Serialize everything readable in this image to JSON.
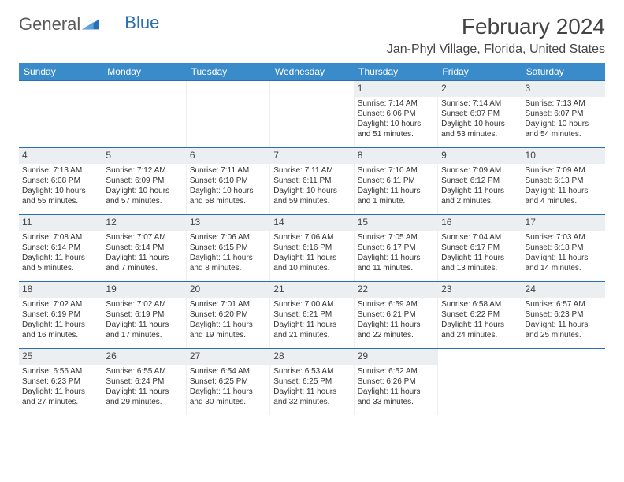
{
  "brand": {
    "part1": "General",
    "part2": "Blue"
  },
  "title": "February 2024",
  "location": "Jan-Phyl Village, Florida, United States",
  "colors": {
    "header_bg": "#3a8bc9",
    "header_text": "#ffffff",
    "border": "#2a6fb5",
    "daynum_bg": "#eceff1",
    "body_text": "#333333",
    "brand_gray": "#5a5a5a",
    "brand_blue": "#2a6fb5"
  },
  "weekdays": [
    "Sunday",
    "Monday",
    "Tuesday",
    "Wednesday",
    "Thursday",
    "Friday",
    "Saturday"
  ],
  "weeks": [
    [
      {
        "n": "",
        "lines": [
          "",
          "",
          "",
          ""
        ]
      },
      {
        "n": "",
        "lines": [
          "",
          "",
          "",
          ""
        ]
      },
      {
        "n": "",
        "lines": [
          "",
          "",
          "",
          ""
        ]
      },
      {
        "n": "",
        "lines": [
          "",
          "",
          "",
          ""
        ]
      },
      {
        "n": "1",
        "lines": [
          "Sunrise: 7:14 AM",
          "Sunset: 6:06 PM",
          "Daylight: 10 hours",
          "and 51 minutes."
        ]
      },
      {
        "n": "2",
        "lines": [
          "Sunrise: 7:14 AM",
          "Sunset: 6:07 PM",
          "Daylight: 10 hours",
          "and 53 minutes."
        ]
      },
      {
        "n": "3",
        "lines": [
          "Sunrise: 7:13 AM",
          "Sunset: 6:07 PM",
          "Daylight: 10 hours",
          "and 54 minutes."
        ]
      }
    ],
    [
      {
        "n": "4",
        "lines": [
          "Sunrise: 7:13 AM",
          "Sunset: 6:08 PM",
          "Daylight: 10 hours",
          "and 55 minutes."
        ]
      },
      {
        "n": "5",
        "lines": [
          "Sunrise: 7:12 AM",
          "Sunset: 6:09 PM",
          "Daylight: 10 hours",
          "and 57 minutes."
        ]
      },
      {
        "n": "6",
        "lines": [
          "Sunrise: 7:11 AM",
          "Sunset: 6:10 PM",
          "Daylight: 10 hours",
          "and 58 minutes."
        ]
      },
      {
        "n": "7",
        "lines": [
          "Sunrise: 7:11 AM",
          "Sunset: 6:11 PM",
          "Daylight: 10 hours",
          "and 59 minutes."
        ]
      },
      {
        "n": "8",
        "lines": [
          "Sunrise: 7:10 AM",
          "Sunset: 6:11 PM",
          "Daylight: 11 hours",
          "and 1 minute."
        ]
      },
      {
        "n": "9",
        "lines": [
          "Sunrise: 7:09 AM",
          "Sunset: 6:12 PM",
          "Daylight: 11 hours",
          "and 2 minutes."
        ]
      },
      {
        "n": "10",
        "lines": [
          "Sunrise: 7:09 AM",
          "Sunset: 6:13 PM",
          "Daylight: 11 hours",
          "and 4 minutes."
        ]
      }
    ],
    [
      {
        "n": "11",
        "lines": [
          "Sunrise: 7:08 AM",
          "Sunset: 6:14 PM",
          "Daylight: 11 hours",
          "and 5 minutes."
        ]
      },
      {
        "n": "12",
        "lines": [
          "Sunrise: 7:07 AM",
          "Sunset: 6:14 PM",
          "Daylight: 11 hours",
          "and 7 minutes."
        ]
      },
      {
        "n": "13",
        "lines": [
          "Sunrise: 7:06 AM",
          "Sunset: 6:15 PM",
          "Daylight: 11 hours",
          "and 8 minutes."
        ]
      },
      {
        "n": "14",
        "lines": [
          "Sunrise: 7:06 AM",
          "Sunset: 6:16 PM",
          "Daylight: 11 hours",
          "and 10 minutes."
        ]
      },
      {
        "n": "15",
        "lines": [
          "Sunrise: 7:05 AM",
          "Sunset: 6:17 PM",
          "Daylight: 11 hours",
          "and 11 minutes."
        ]
      },
      {
        "n": "16",
        "lines": [
          "Sunrise: 7:04 AM",
          "Sunset: 6:17 PM",
          "Daylight: 11 hours",
          "and 13 minutes."
        ]
      },
      {
        "n": "17",
        "lines": [
          "Sunrise: 7:03 AM",
          "Sunset: 6:18 PM",
          "Daylight: 11 hours",
          "and 14 minutes."
        ]
      }
    ],
    [
      {
        "n": "18",
        "lines": [
          "Sunrise: 7:02 AM",
          "Sunset: 6:19 PM",
          "Daylight: 11 hours",
          "and 16 minutes."
        ]
      },
      {
        "n": "19",
        "lines": [
          "Sunrise: 7:02 AM",
          "Sunset: 6:19 PM",
          "Daylight: 11 hours",
          "and 17 minutes."
        ]
      },
      {
        "n": "20",
        "lines": [
          "Sunrise: 7:01 AM",
          "Sunset: 6:20 PM",
          "Daylight: 11 hours",
          "and 19 minutes."
        ]
      },
      {
        "n": "21",
        "lines": [
          "Sunrise: 7:00 AM",
          "Sunset: 6:21 PM",
          "Daylight: 11 hours",
          "and 21 minutes."
        ]
      },
      {
        "n": "22",
        "lines": [
          "Sunrise: 6:59 AM",
          "Sunset: 6:21 PM",
          "Daylight: 11 hours",
          "and 22 minutes."
        ]
      },
      {
        "n": "23",
        "lines": [
          "Sunrise: 6:58 AM",
          "Sunset: 6:22 PM",
          "Daylight: 11 hours",
          "and 24 minutes."
        ]
      },
      {
        "n": "24",
        "lines": [
          "Sunrise: 6:57 AM",
          "Sunset: 6:23 PM",
          "Daylight: 11 hours",
          "and 25 minutes."
        ]
      }
    ],
    [
      {
        "n": "25",
        "lines": [
          "Sunrise: 6:56 AM",
          "Sunset: 6:23 PM",
          "Daylight: 11 hours",
          "and 27 minutes."
        ]
      },
      {
        "n": "26",
        "lines": [
          "Sunrise: 6:55 AM",
          "Sunset: 6:24 PM",
          "Daylight: 11 hours",
          "and 29 minutes."
        ]
      },
      {
        "n": "27",
        "lines": [
          "Sunrise: 6:54 AM",
          "Sunset: 6:25 PM",
          "Daylight: 11 hours",
          "and 30 minutes."
        ]
      },
      {
        "n": "28",
        "lines": [
          "Sunrise: 6:53 AM",
          "Sunset: 6:25 PM",
          "Daylight: 11 hours",
          "and 32 minutes."
        ]
      },
      {
        "n": "29",
        "lines": [
          "Sunrise: 6:52 AM",
          "Sunset: 6:26 PM",
          "Daylight: 11 hours",
          "and 33 minutes."
        ]
      },
      {
        "n": "",
        "lines": [
          "",
          "",
          "",
          ""
        ]
      },
      {
        "n": "",
        "lines": [
          "",
          "",
          "",
          ""
        ]
      }
    ]
  ]
}
